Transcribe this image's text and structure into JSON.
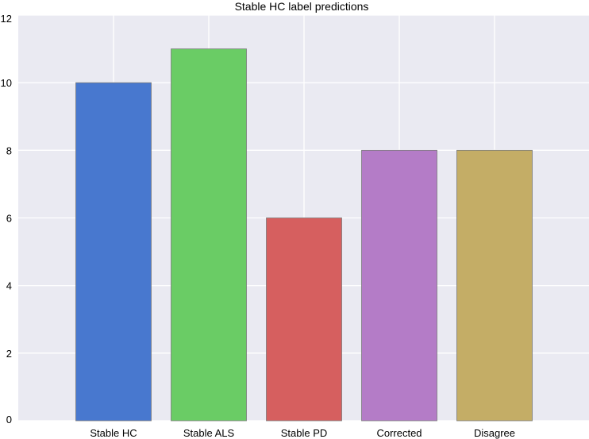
{
  "chart_data": {
    "type": "bar",
    "title": "Stable HC label predictions",
    "xlabel": "",
    "ylabel": "",
    "categories": [
      "Stable HC",
      "Stable ALS",
      "Stable PD",
      "Corrected",
      "Disagree"
    ],
    "values": [
      10,
      11,
      6,
      8,
      8
    ],
    "colors": [
      "#4878cf",
      "#6acc65",
      "#d65f5f",
      "#b47cc7",
      "#c4ad66"
    ],
    "ylim": [
      0,
      12
    ],
    "yticks": [
      0,
      2,
      4,
      6,
      8,
      10,
      12
    ],
    "grid": true,
    "background_color": "#eaeaf2",
    "grid_color": "#ffffff",
    "legend": "none"
  }
}
